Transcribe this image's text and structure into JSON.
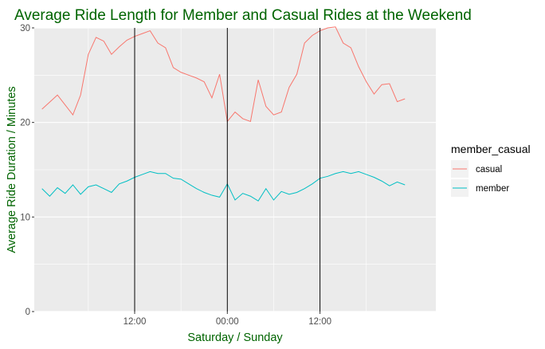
{
  "chart_data": {
    "type": "line",
    "title": "Average Ride Length for Member and Casual Rides at the Weekend",
    "xlabel": "Saturday / Sunday",
    "ylabel": "Average Ride Duration / Minutes",
    "x_ticks": [
      {
        "hour": 12,
        "label": "12:00"
      },
      {
        "hour": 24,
        "label": "00:00"
      },
      {
        "hour": 36,
        "label": "12:00"
      }
    ],
    "y_ticks": [
      0,
      10,
      20,
      30
    ],
    "xlim": [
      -1,
      51
    ],
    "ylim": [
      0,
      30
    ],
    "vlines": [
      12,
      24,
      36
    ],
    "legend": {
      "title": "member_casual",
      "position": "right"
    },
    "grid": true,
    "series": [
      {
        "name": "casual",
        "color": "#F8766D",
        "x": [
          0,
          2,
          4,
          5,
          6,
          7,
          8,
          9,
          10,
          11,
          12,
          13,
          14,
          15,
          16,
          17,
          18,
          19,
          20,
          21,
          22,
          23,
          24,
          25,
          26,
          27,
          28,
          29,
          30,
          31,
          32,
          33,
          34,
          35,
          36,
          37,
          38,
          39,
          40,
          41,
          42,
          43,
          44,
          45,
          46,
          47
        ],
        "y": [
          21.4,
          22.9,
          20.8,
          22.9,
          27.2,
          29.0,
          28.6,
          27.2,
          28.0,
          28.7,
          29.1,
          29.4,
          29.7,
          28.4,
          27.9,
          25.8,
          25.3,
          25.0,
          24.7,
          24.3,
          22.6,
          25.1,
          20.1,
          21.1,
          20.4,
          20.1,
          24.5,
          21.7,
          20.8,
          21.1,
          23.7,
          25.1,
          28.4,
          29.2,
          29.7,
          30.0,
          30.1,
          28.4,
          27.9,
          25.9,
          24.3,
          23.0,
          24.0,
          24.1,
          22.2,
          22.5
        ]
      },
      {
        "name": "member",
        "color": "#00BFC4",
        "x": [
          0,
          1,
          2,
          3,
          4,
          5,
          6,
          7,
          8,
          9,
          10,
          11,
          12,
          13,
          14,
          15,
          16,
          17,
          18,
          19,
          20,
          21,
          22,
          23,
          24,
          25,
          26,
          27,
          28,
          29,
          30,
          31,
          32,
          33,
          34,
          35,
          36,
          37,
          38,
          39,
          40,
          41,
          42,
          43,
          44,
          45,
          46,
          47
        ],
        "y": [
          13.0,
          12.2,
          13.1,
          12.5,
          13.4,
          12.4,
          13.2,
          13.4,
          13.0,
          12.6,
          13.5,
          13.8,
          14.2,
          14.5,
          14.8,
          14.6,
          14.6,
          14.1,
          14.0,
          13.5,
          13.0,
          12.6,
          12.3,
          12.1,
          13.5,
          11.8,
          12.5,
          12.2,
          11.7,
          13.0,
          11.8,
          12.7,
          12.4,
          12.6,
          13.0,
          13.5,
          14.1,
          14.3,
          14.6,
          14.8,
          14.6,
          14.8,
          14.5,
          14.2,
          13.8,
          13.3,
          13.7,
          13.4
        ]
      }
    ]
  }
}
